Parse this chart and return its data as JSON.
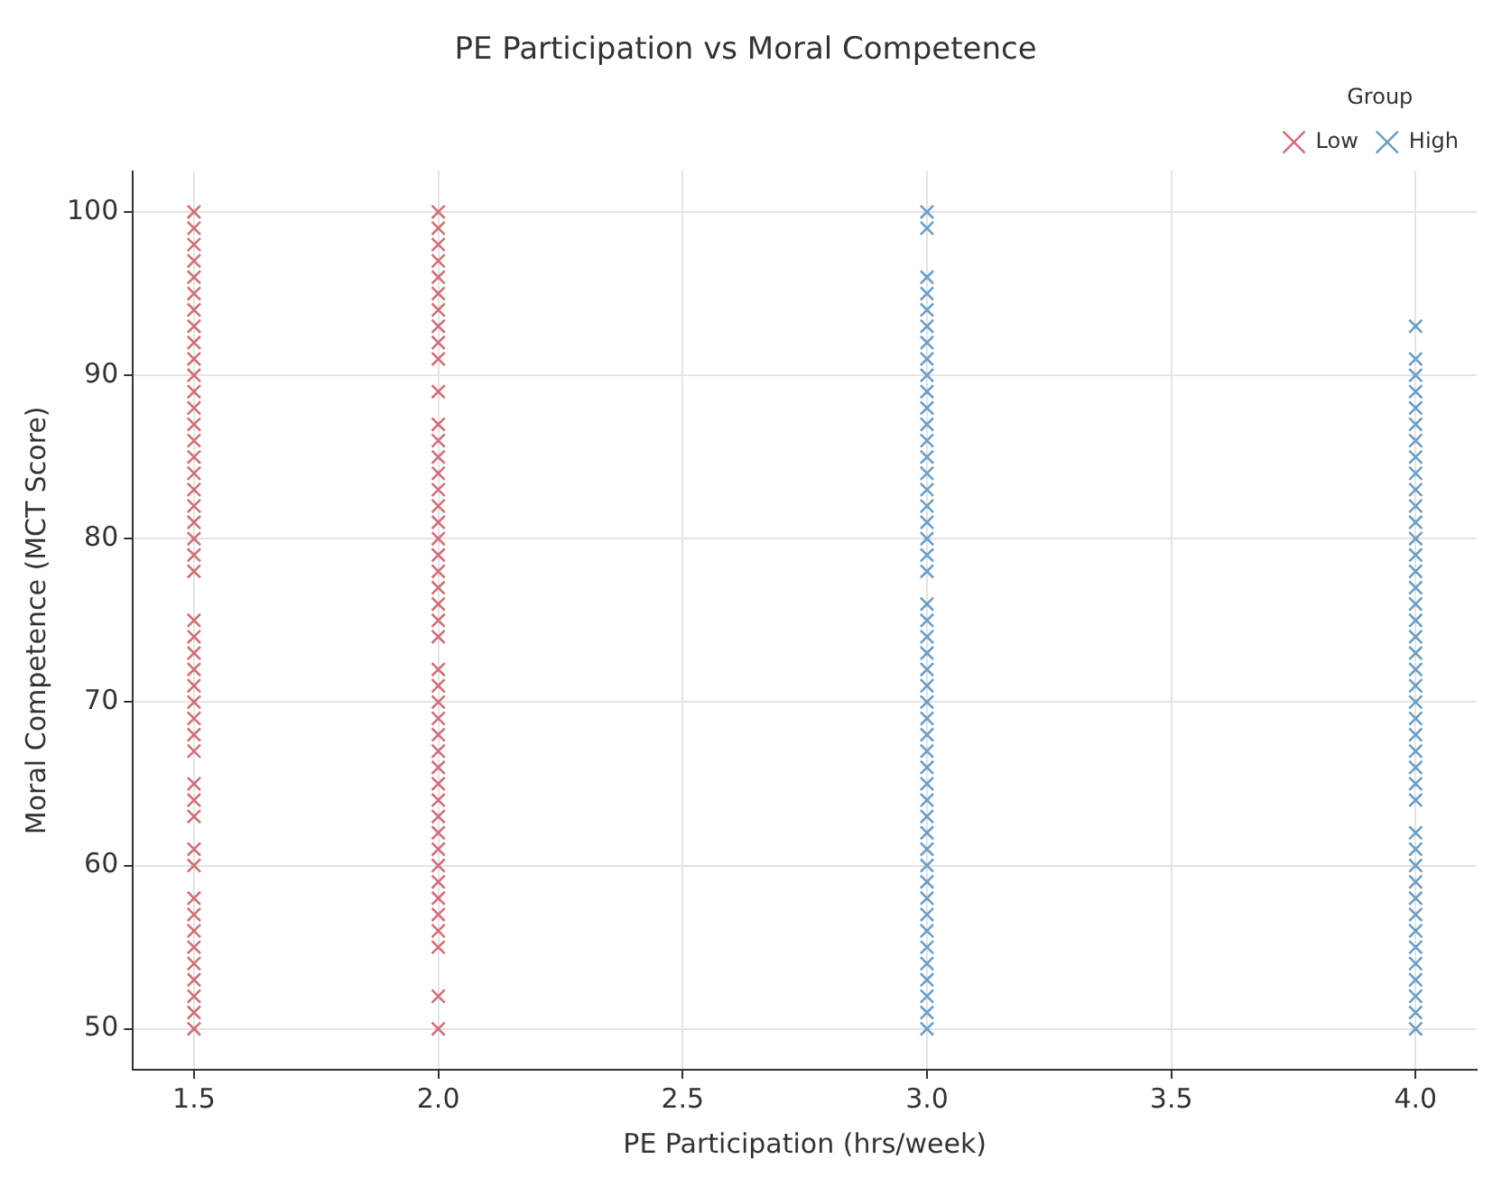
{
  "chart_data": {
    "type": "scatter",
    "title": "PE Participation vs Moral Competence",
    "xlabel": "PE Participation (hrs/week)",
    "ylabel": "Moral Competence (MCT Score)",
    "legend_title": "Group",
    "legend": "top right",
    "grid": true,
    "marker": "cross",
    "xlim": [
      1.375,
      4.125
    ],
    "xticks": [
      {
        "value": 1.5,
        "label": "1.5"
      },
      {
        "value": 2,
        "label": "2.0"
      },
      {
        "value": 2.5,
        "label": "2.5"
      },
      {
        "value": 3,
        "label": "3.0"
      },
      {
        "value": 3.5,
        "label": "3.5"
      },
      {
        "value": 4,
        "label": "4.0"
      }
    ],
    "ylim": [
      47.5,
      102.5
    ],
    "yticks": [
      50,
      60,
      70,
      80,
      90,
      100
    ],
    "series": [
      {
        "name": "Low",
        "color": "#d0707a",
        "x": [
          1.5,
          1.5,
          1.5,
          1.5,
          1.5,
          1.5,
          1.5,
          1.5,
          1.5,
          1.5,
          1.5,
          1.5,
          1.5,
          1.5,
          1.5,
          1.5,
          1.5,
          1.5,
          1.5,
          1.5,
          1.5,
          1.5,
          1.5,
          1.5,
          1.5,
          1.5,
          1.5,
          1.5,
          1.5,
          1.5,
          1.5,
          1.5,
          1.5,
          1.5,
          1.5,
          1.5,
          1.5,
          1.5,
          1.5,
          1.5,
          1.5,
          1.5,
          1.5,
          1.5,
          1.5,
          1.5,
          2,
          2,
          2,
          2,
          2,
          2,
          2,
          2,
          2,
          2,
          2,
          2,
          2,
          2,
          2,
          2,
          2,
          2,
          2,
          2,
          2,
          2,
          2,
          2,
          2,
          2,
          2,
          2,
          2,
          2,
          2,
          2,
          2,
          2,
          2,
          2,
          2,
          2,
          2,
          2,
          2,
          2,
          2,
          2,
          2
        ],
        "values": [
          100,
          99,
          98,
          97,
          96,
          95,
          94,
          93,
          92,
          91,
          90,
          89,
          88,
          87,
          86,
          85,
          84,
          83,
          82,
          81,
          80,
          79,
          78,
          75,
          74,
          73,
          72,
          71,
          70,
          69,
          68,
          67,
          65,
          64,
          63,
          61,
          60,
          58,
          57,
          56,
          55,
          54,
          53,
          52,
          51,
          50,
          100,
          99,
          98,
          97,
          96,
          95,
          94,
          93,
          92,
          91,
          89,
          87,
          86,
          85,
          84,
          83,
          82,
          81,
          80,
          79,
          78,
          77,
          76,
          75,
          74,
          72,
          71,
          70,
          69,
          68,
          67,
          66,
          65,
          64,
          63,
          62,
          61,
          60,
          59,
          58,
          57,
          56,
          55,
          52,
          50
        ]
      },
      {
        "name": "High",
        "color": "#6f9ec4",
        "x": [
          3,
          3,
          3,
          3,
          3,
          3,
          3,
          3,
          3,
          3,
          3,
          3,
          3,
          3,
          3,
          3,
          3,
          3,
          3,
          3,
          3,
          3,
          3,
          3,
          3,
          3,
          3,
          3,
          3,
          3,
          3,
          3,
          3,
          3,
          3,
          3,
          3,
          3,
          3,
          3,
          3,
          3,
          3,
          3,
          3,
          3,
          3,
          3,
          4,
          4,
          4,
          4,
          4,
          4,
          4,
          4,
          4,
          4,
          4,
          4,
          4,
          4,
          4,
          4,
          4,
          4,
          4,
          4,
          4,
          4,
          4,
          4,
          4,
          4,
          4,
          4,
          4,
          4,
          4,
          4,
          4,
          4,
          4,
          4,
          4,
          4,
          4,
          4,
          4,
          4
        ],
        "values": [
          100,
          99,
          96,
          95,
          94,
          93,
          92,
          91,
          90,
          89,
          88,
          87,
          86,
          85,
          84,
          83,
          82,
          81,
          80,
          79,
          78,
          76,
          75,
          74,
          73,
          72,
          71,
          70,
          69,
          68,
          67,
          66,
          65,
          64,
          63,
          62,
          61,
          60,
          59,
          58,
          57,
          56,
          55,
          54,
          53,
          52,
          51,
          50,
          93,
          91,
          90,
          89,
          88,
          87,
          86,
          85,
          84,
          83,
          82,
          81,
          80,
          79,
          78,
          77,
          76,
          75,
          74,
          73,
          72,
          71,
          70,
          69,
          68,
          67,
          66,
          65,
          64,
          62,
          61,
          60,
          59,
          58,
          57,
          56,
          55,
          54,
          53,
          52,
          51,
          50
        ]
      }
    ]
  }
}
